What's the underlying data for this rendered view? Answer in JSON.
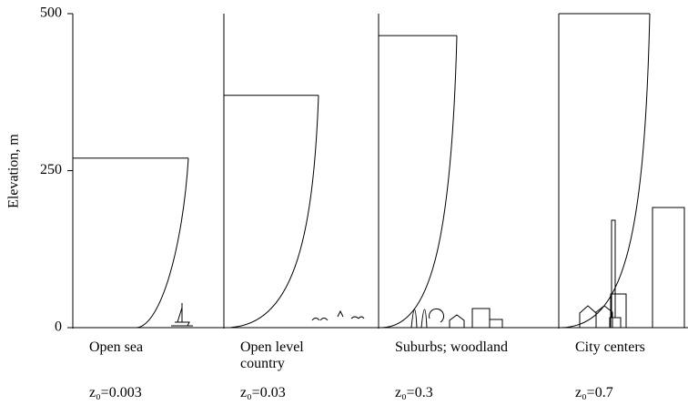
{
  "chart_data": {
    "type": "profile",
    "ylabel": "Elevation, m",
    "ylim": [
      0,
      500
    ],
    "yticks": [
      0,
      250,
      500
    ],
    "panels": [
      {
        "label": "Open sea",
        "roughness_label": "z₀=0.003",
        "height": 270
      },
      {
        "label": "Open level country",
        "roughness_label": "z₀=0.03",
        "height": 370
      },
      {
        "label": "Suburbs; woodland",
        "roughness_label": "z₀=0.3",
        "height": 465
      },
      {
        "label": "City centers",
        "roughness_label": "z₀=0.7",
        "height": 500
      }
    ]
  }
}
